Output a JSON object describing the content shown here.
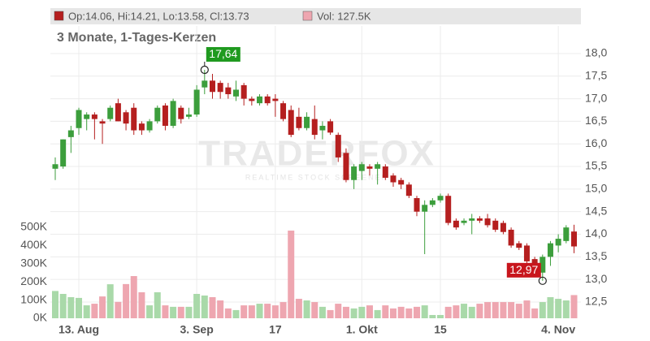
{
  "chart_data": {
    "type": "candlestick",
    "header": {
      "ohlc": "Op:14.06, Hi:14.21, Lo:13.58, Cl:13.73",
      "volume": "Vol: 127.5K"
    },
    "subtitle": "3 Monate, 1-Tages-Kerzen",
    "watermark": {
      "title": "TRADERFOX",
      "subtitle": "REALTIME STOCK SCREENER"
    },
    "categories": [
      null,
      null,
      null,
      "13. Aug",
      null,
      null,
      null,
      null,
      null,
      null,
      null,
      null,
      null,
      null,
      null,
      null,
      null,
      null,
      "3. Sep",
      null,
      null,
      null,
      null,
      null,
      null,
      null,
      null,
      null,
      "17",
      null,
      null,
      null,
      null,
      null,
      null,
      null,
      null,
      null,
      null,
      "1. Okt",
      null,
      null,
      null,
      null,
      null,
      null,
      null,
      null,
      null,
      "15",
      null,
      null,
      null,
      null,
      null,
      null,
      null,
      null,
      null,
      null,
      null,
      null,
      null,
      null,
      "4. Nov",
      null,
      null
    ],
    "open": [
      15.45,
      15.5,
      16.15,
      16.35,
      16.55,
      16.65,
      16.5,
      16.55,
      16.9,
      16.7,
      16.8,
      16.45,
      16.3,
      16.5,
      16.85,
      16.4,
      16.8,
      16.6,
      16.65,
      17.25,
      17.4,
      17.35,
      17.25,
      17.05,
      17.3,
      17.0,
      16.9,
      17.05,
      17.0,
      16.9,
      16.75,
      16.6,
      16.35,
      16.55,
      16.3,
      16.5,
      16.2,
      15.8,
      15.2,
      15.4,
      15.5,
      15.45,
      15.5,
      15.3,
      15.2,
      15.1,
      14.8,
      14.5,
      14.65,
      14.75,
      14.85,
      14.3,
      14.25,
      14.3,
      14.35,
      14.35,
      14.3,
      14.25,
      14.1,
      13.8,
      13.75,
      13.45,
      13.15,
      13.5,
      13.75,
      13.85,
      14.06
    ],
    "high": [
      15.7,
      16.1,
      16.4,
      16.8,
      16.7,
      16.7,
      16.55,
      16.85,
      17.0,
      16.75,
      16.9,
      16.5,
      16.55,
      16.85,
      16.9,
      17.0,
      16.85,
      16.8,
      17.3,
      17.64,
      17.55,
      17.4,
      17.35,
      17.4,
      17.35,
      17.05,
      17.1,
      17.1,
      17.1,
      16.95,
      16.85,
      16.8,
      16.7,
      16.85,
      16.5,
      16.55,
      16.25,
      15.9,
      15.55,
      15.6,
      15.55,
      15.6,
      15.55,
      15.35,
      15.25,
      15.15,
      14.85,
      14.75,
      14.8,
      14.9,
      14.9,
      14.35,
      14.35,
      14.45,
      14.4,
      14.45,
      14.35,
      14.3,
      14.15,
      13.85,
      13.8,
      13.5,
      13.55,
      13.85,
      14.0,
      14.2,
      14.21
    ],
    "low": [
      15.2,
      15.45,
      15.8,
      16.2,
      16.3,
      16.1,
      16.0,
      16.5,
      16.5,
      16.3,
      16.2,
      16.2,
      16.25,
      16.45,
      16.3,
      16.35,
      16.45,
      16.55,
      16.6,
      17.1,
      17.0,
      17.0,
      17.0,
      16.95,
      16.85,
      16.85,
      16.85,
      16.85,
      16.6,
      16.5,
      16.15,
      16.3,
      16.3,
      16.1,
      16.1,
      16.2,
      15.6,
      15.15,
      15.0,
      15.2,
      15.3,
      15.1,
      15.2,
      15.05,
      15.0,
      14.8,
      14.4,
      13.56,
      14.6,
      14.7,
      14.2,
      14.1,
      14.2,
      14.0,
      14.25,
      14.15,
      14.05,
      14.0,
      13.7,
      13.65,
      13.3,
      13.1,
      12.97,
      13.3,
      13.6,
      13.8,
      13.58
    ],
    "close": [
      15.55,
      16.1,
      16.3,
      16.75,
      16.65,
      16.55,
      16.45,
      16.8,
      16.5,
      16.45,
      16.3,
      16.3,
      16.5,
      16.8,
      16.4,
      16.95,
      16.55,
      16.65,
      17.2,
      17.4,
      17.15,
      17.15,
      17.1,
      17.2,
      17.0,
      16.95,
      17.05,
      16.9,
      16.95,
      16.55,
      16.2,
      16.35,
      16.6,
      16.2,
      16.4,
      16.25,
      15.7,
      15.2,
      15.5,
      15.55,
      15.45,
      15.55,
      15.25,
      15.15,
      15.1,
      14.85,
      14.5,
      14.65,
      14.75,
      14.85,
      14.25,
      14.15,
      14.3,
      14.35,
      14.3,
      14.2,
      14.1,
      14.05,
      13.75,
      13.7,
      13.4,
      13.15,
      13.5,
      13.8,
      13.9,
      14.15,
      13.73
    ],
    "volume": [
      150000,
      134000,
      116000,
      112000,
      71000,
      80000,
      120000,
      187000,
      90000,
      188000,
      232000,
      143000,
      71000,
      143000,
      71000,
      63000,
      63000,
      63000,
      134000,
      125000,
      116000,
      98000,
      54000,
      45000,
      71000,
      71000,
      80000,
      80000,
      71000,
      89000,
      482000,
      107000,
      98000,
      89000,
      63000,
      45000,
      80000,
      63000,
      54000,
      63000,
      71000,
      45000,
      71000,
      54000,
      63000,
      54000,
      63000,
      71000,
      18000,
      18000,
      63000,
      71000,
      80000,
      63000,
      80000,
      89000,
      89000,
      89000,
      89000,
      80000,
      98000,
      54000,
      89000,
      116000,
      107000,
      98000,
      127500
    ],
    "colors": {
      "up": "#3c9e3c",
      "down": "#b51f1f",
      "volume_up": "#a9d9a9",
      "volume_down": "#eea6b0",
      "grid": "#ececec"
    },
    "annotations": [
      {
        "text": "17,64",
        "value": 17.64,
        "color": "#1f9a1f"
      },
      {
        "text": "12,97",
        "value": 12.97,
        "color": "#c8161d"
      }
    ],
    "ylim": [
      12.14,
      18.61
    ],
    "yticks": [
      {
        "value": 12.5,
        "label": "12,5"
      },
      {
        "value": 13,
        "label": "13,0"
      },
      {
        "value": 13.5,
        "label": "13,5"
      },
      {
        "value": 14,
        "label": "14,0"
      },
      {
        "value": 14.5,
        "label": "14,5"
      },
      {
        "value": 15,
        "label": "15,0"
      },
      {
        "value": 15.5,
        "label": "15,5"
      },
      {
        "value": 16,
        "label": "16,0"
      },
      {
        "value": 16.5,
        "label": "16,5"
      },
      {
        "value": 17,
        "label": "17,0"
      },
      {
        "value": 17.5,
        "label": "17,5"
      },
      {
        "value": 18,
        "label": "18,0"
      }
    ],
    "y2lim": [
      0,
      1607000
    ],
    "y2ticks": [
      {
        "value": 0,
        "label": "0K"
      },
      {
        "value": 100000,
        "label": "100K"
      },
      {
        "value": 200000,
        "label": "200K"
      },
      {
        "value": 300000,
        "label": "300K"
      },
      {
        "value": 400000,
        "label": "400K"
      },
      {
        "value": 500000,
        "label": "500K"
      }
    ],
    "grid": true
  }
}
